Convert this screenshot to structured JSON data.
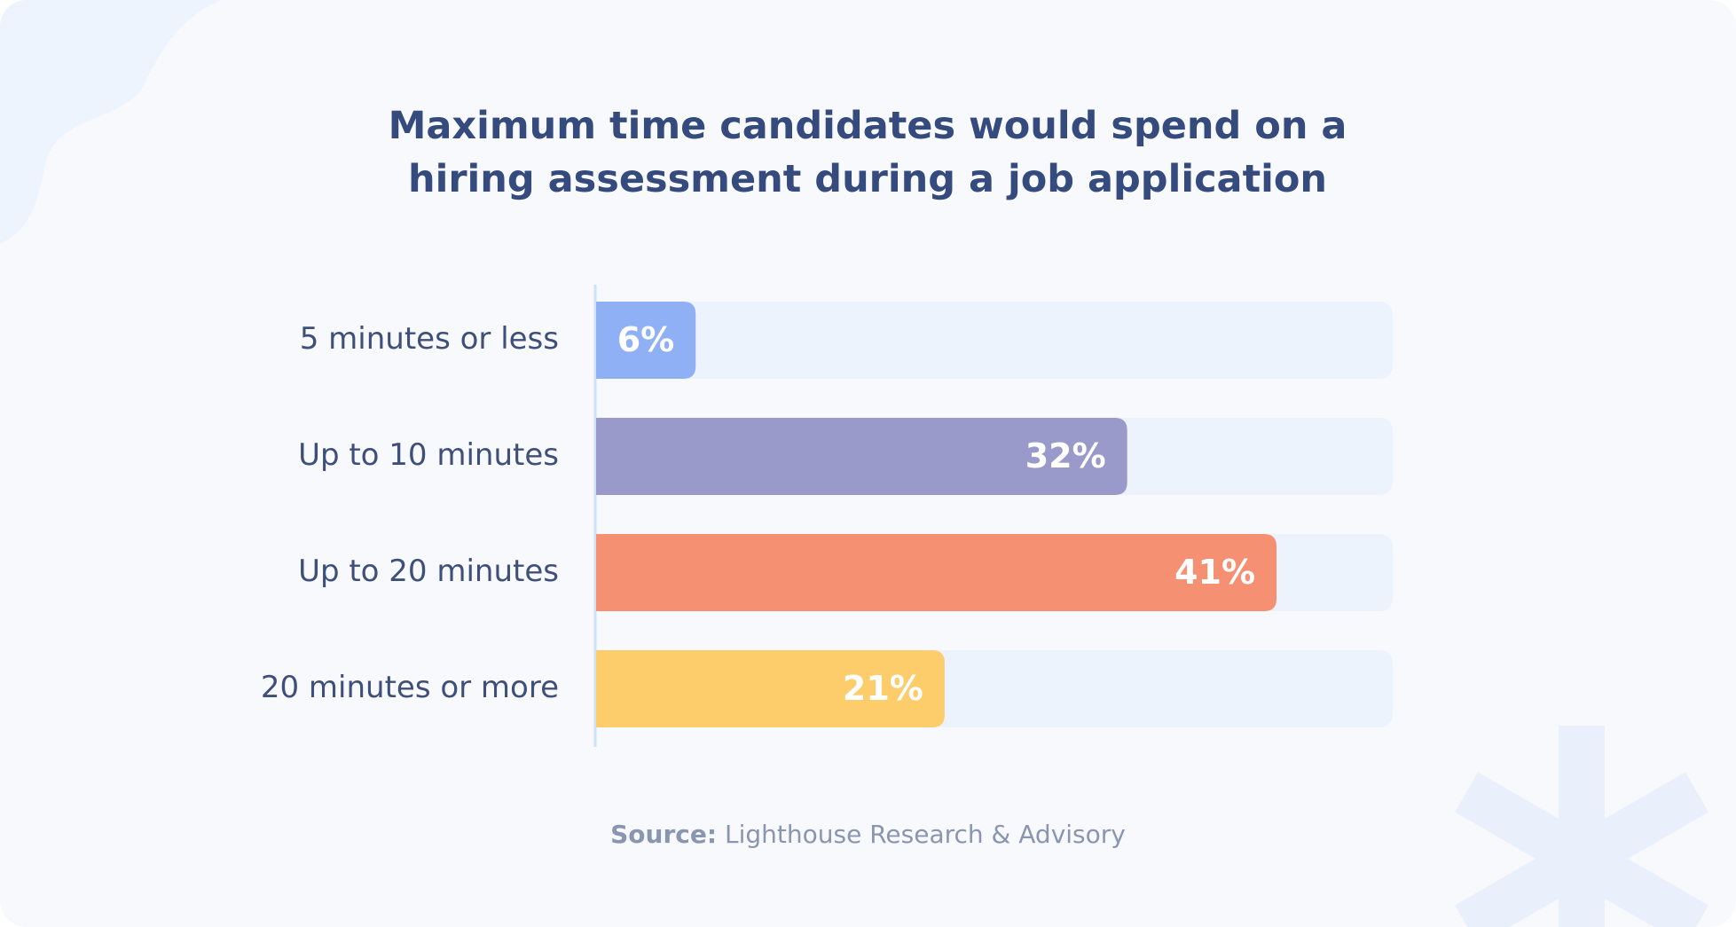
{
  "chart_data": {
    "type": "bar",
    "orientation": "horizontal",
    "title": "Maximum time candidates would spend on a hiring assessment during a job application",
    "categories": [
      "5 minutes or less",
      "Up to 10 minutes",
      "Up to 20 minutes",
      "20 minutes or more"
    ],
    "values": [
      6,
      32,
      41,
      21
    ],
    "value_labels": [
      "6%",
      "32%",
      "41%",
      "21%"
    ],
    "colors": [
      "#8fb0f5",
      "#9a9aca",
      "#f59073",
      "#fdcc6b"
    ],
    "xlim": [
      0,
      48
    ],
    "source_label": "Source:",
    "source": "Lighthouse Research & Advisory"
  }
}
